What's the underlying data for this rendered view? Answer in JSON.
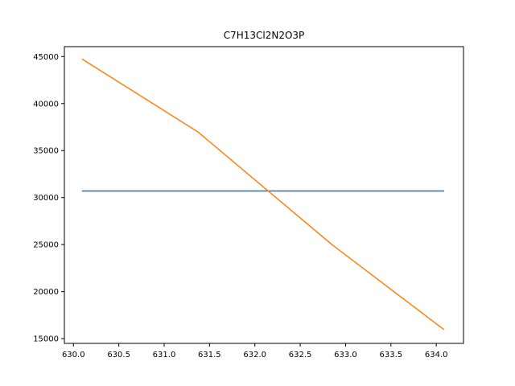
{
  "chart_data": {
    "type": "line",
    "title": "C7H13Cl2N2O3P",
    "xlabel": "",
    "ylabel": "",
    "xlim": [
      629.9,
      634.3
    ],
    "ylim": [
      14500,
      46050
    ],
    "grid": false,
    "legend": "none",
    "x_ticks": [
      630.0,
      630.5,
      631.0,
      631.5,
      632.0,
      632.5,
      633.0,
      633.5,
      634.0
    ],
    "x_tick_labels": [
      "630.0",
      "630.5",
      "631.0",
      "631.5",
      "632.0",
      "632.5",
      "633.0",
      "633.5",
      "634.0"
    ],
    "y_ticks": [
      15000,
      20000,
      25000,
      30000,
      35000,
      40000,
      45000
    ],
    "y_tick_labels": [
      "15000",
      "20000",
      "25000",
      "30000",
      "35000",
      "40000",
      "45000"
    ],
    "series": [
      {
        "color": "#1f77b4",
        "x": [
          630.1,
          634.08
        ],
        "y": [
          30700,
          30700
        ]
      },
      {
        "color": "#ff7f0e",
        "x": [
          630.1,
          631.37,
          632.85,
          634.08
        ],
        "y": [
          44700,
          37000,
          25000,
          16000
        ]
      }
    ]
  }
}
